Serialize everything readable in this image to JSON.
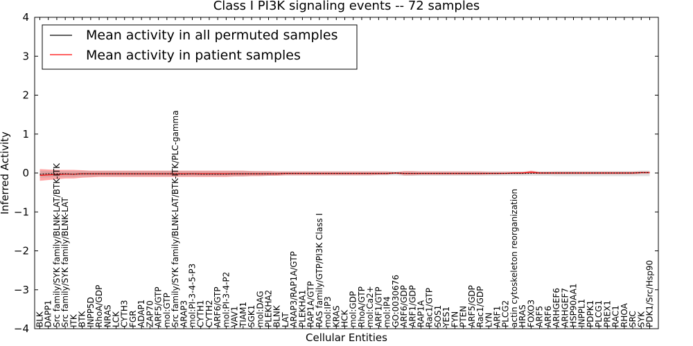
{
  "chart_data": {
    "type": "line",
    "title": "Class I PI3K signaling events -- 72 samples",
    "xlabel": "Cellular Entities",
    "ylabel": "Inferred Activity",
    "ylim": [
      -4,
      4
    ],
    "yticks": [
      -4,
      -3,
      -2,
      -1,
      0,
      1,
      2,
      3,
      4
    ],
    "ytick_labels": [
      "−4",
      "−3",
      "−2",
      "−1",
      "0",
      "1",
      "2",
      "3",
      "4"
    ],
    "grid": false,
    "legend": {
      "placement": "top-left",
      "entries": [
        {
          "label": "Mean activity in all permuted samples",
          "color": "#000000"
        },
        {
          "label": "Mean activity in patient samples",
          "color": "#ff0000"
        }
      ]
    },
    "categories": [
      "BLK",
      "DAPP1",
      "Src family/SYK family/BLNK-LAT/BTK-ITK",
      "Src family/SYK family/BLNK-LAT",
      "ITK",
      "BTK",
      "INPP5D",
      "RhoA/GDP",
      "NRAS",
      "LCK",
      "CYTH3",
      "FGR",
      "ADAP1",
      "ZAP70",
      "ARF5/GTP",
      "mol:GTP",
      "Src family/SYK family/BLNK-LAT/BTK-ITK/PLC-gamma",
      "ARAP3",
      "mol:PI-3-4-5-P3",
      "CYTH1",
      "CYTH2",
      "ARF6/GTP",
      "mol:PI-3-4-P2",
      "VAV1",
      "TIAM1",
      "SGK1",
      "mol:DAG",
      "PLEKHA2",
      "BLNK",
      "LAT",
      "ARAP3/RAP1A/GTP",
      "PLEKHA1",
      "RAP1A/GTP",
      "RAS family/GTP/PI3K Class I",
      "mol:IP3",
      "KRAS",
      "HCK",
      "mol:GDP",
      "RhoA/GTP",
      "mol:Ca2+",
      "ARF1/GTP",
      "mol:IP4",
      "GO:0030676",
      "ARF6/GDP",
      "ARF1/GDP",
      "RAP1A",
      "Rac1/GTP",
      "SOS1",
      "YES1",
      "FYN",
      "PTEN",
      "ARF5/GDP",
      "Rac1/GDP",
      "LYN",
      "ARF1",
      "PLCG2",
      "actin cytoskeleton reorganization",
      "HRAS",
      "FOXO3",
      "ARF5",
      "ARF6",
      "ARHGEF6",
      "ARHGEF7",
      "HSP90AA1",
      "INPPL1",
      "PDPK1",
      "PLCG1",
      "PREX1",
      "RAC1",
      "RHOA",
      "SRC",
      "SYK",
      "PDK1/Src/Hsp90"
    ],
    "series": [
      {
        "name": "Mean activity in all permuted samples",
        "color": "#000000",
        "values": [
          -0.03,
          -0.02,
          -0.02,
          -0.02,
          -0.03,
          -0.02,
          -0.02,
          -0.02,
          -0.02,
          -0.02,
          -0.02,
          -0.02,
          -0.02,
          -0.02,
          -0.02,
          -0.02,
          -0.02,
          -0.03,
          -0.02,
          -0.03,
          -0.03,
          -0.03,
          -0.03,
          -0.02,
          -0.02,
          -0.02,
          -0.02,
          -0.02,
          -0.02,
          -0.01,
          -0.01,
          -0.01,
          -0.01,
          -0.01,
          -0.01,
          -0.01,
          -0.01,
          -0.01,
          -0.01,
          -0.01,
          -0.01,
          -0.01,
          0.0,
          -0.01,
          -0.01,
          -0.01,
          -0.01,
          -0.01,
          -0.01,
          -0.01,
          -0.01,
          -0.01,
          -0.01,
          -0.01,
          -0.01,
          -0.01,
          -0.01,
          -0.01,
          -0.01,
          0.0,
          0.0,
          0.0,
          0.0,
          0.0,
          0.0,
          0.0,
          0.0,
          0.0,
          0.0,
          0.0,
          0.0,
          0.01,
          0.01
        ]
      },
      {
        "name": "Mean activity in patient samples",
        "color": "#ff0000",
        "values": [
          -0.06,
          -0.05,
          -0.04,
          -0.03,
          -0.03,
          -0.02,
          -0.02,
          -0.02,
          -0.02,
          -0.02,
          -0.02,
          -0.02,
          -0.02,
          -0.02,
          -0.02,
          -0.02,
          -0.02,
          -0.02,
          -0.02,
          -0.02,
          -0.02,
          -0.02,
          -0.02,
          -0.02,
          -0.02,
          -0.02,
          -0.02,
          -0.02,
          -0.02,
          -0.01,
          -0.01,
          -0.01,
          -0.01,
          -0.01,
          -0.01,
          -0.01,
          -0.01,
          -0.01,
          -0.01,
          -0.01,
          -0.01,
          -0.01,
          0.0,
          -0.01,
          -0.01,
          -0.01,
          -0.01,
          -0.01,
          -0.01,
          -0.01,
          -0.01,
          -0.01,
          -0.01,
          -0.01,
          -0.01,
          -0.01,
          0.0,
          0.0,
          0.02,
          0.0,
          0.0,
          0.0,
          0.0,
          0.0,
          0.0,
          0.0,
          0.0,
          0.0,
          0.0,
          0.0,
          0.0,
          0.01,
          0.01
        ]
      }
    ],
    "bands": [
      {
        "series": "Mean activity in patient samples",
        "color": "#ff0000",
        "lower": [
          -0.2,
          -0.18,
          -0.16,
          -0.14,
          -0.14,
          -0.12,
          -0.11,
          -0.1,
          -0.1,
          -0.1,
          -0.1,
          -0.1,
          -0.1,
          -0.1,
          -0.1,
          -0.1,
          -0.1,
          -0.1,
          -0.1,
          -0.1,
          -0.1,
          -0.1,
          -0.1,
          -0.09,
          -0.09,
          -0.08,
          -0.08,
          -0.07,
          -0.07,
          -0.06,
          -0.06,
          -0.06,
          -0.06,
          -0.06,
          -0.06,
          -0.06,
          -0.06,
          -0.06,
          -0.06,
          -0.06,
          -0.05,
          -0.05,
          -0.02,
          -0.06,
          -0.06,
          -0.05,
          -0.05,
          -0.05,
          -0.05,
          -0.05,
          -0.05,
          -0.05,
          -0.05,
          -0.04,
          -0.04,
          -0.03,
          -0.03,
          -0.03,
          -0.02,
          -0.03,
          -0.03,
          -0.03,
          -0.03,
          -0.03,
          -0.03,
          -0.03,
          -0.03,
          -0.03,
          -0.03,
          -0.03,
          -0.03,
          -0.02,
          -0.02
        ],
        "upper": [
          0.1,
          0.09,
          0.08,
          0.08,
          0.08,
          0.07,
          0.06,
          0.06,
          0.06,
          0.06,
          0.06,
          0.06,
          0.06,
          0.06,
          0.06,
          0.06,
          0.06,
          0.06,
          0.06,
          0.06,
          0.06,
          0.06,
          0.06,
          0.06,
          0.06,
          0.05,
          0.05,
          0.05,
          0.04,
          0.04,
          0.04,
          0.04,
          0.04,
          0.04,
          0.04,
          0.04,
          0.04,
          0.04,
          0.04,
          0.04,
          0.04,
          0.04,
          0.02,
          0.05,
          0.05,
          0.04,
          0.04,
          0.04,
          0.04,
          0.04,
          0.04,
          0.04,
          0.04,
          0.03,
          0.03,
          0.03,
          0.03,
          0.03,
          0.06,
          0.03,
          0.03,
          0.03,
          0.03,
          0.03,
          0.03,
          0.03,
          0.03,
          0.03,
          0.03,
          0.03,
          0.03,
          0.04,
          0.04
        ]
      },
      {
        "series": "Mean activity in all permuted samples",
        "color": "#999999",
        "lower": [
          -0.12,
          -0.11,
          -0.1,
          -0.1,
          -0.1,
          -0.09,
          -0.09,
          -0.08,
          -0.08,
          -0.08,
          -0.08,
          -0.08,
          -0.08,
          -0.08,
          -0.08,
          -0.08,
          -0.08,
          -0.08,
          -0.08,
          -0.08,
          -0.08,
          -0.08,
          -0.08,
          -0.08,
          -0.08,
          -0.07,
          -0.07,
          -0.07,
          -0.06,
          -0.06,
          -0.06,
          -0.06,
          -0.06,
          -0.06,
          -0.06,
          -0.06,
          -0.06,
          -0.06,
          -0.06,
          -0.06,
          -0.06,
          -0.06,
          -0.06,
          -0.07,
          -0.07,
          -0.07,
          -0.07,
          -0.07,
          -0.07,
          -0.07,
          -0.07,
          -0.07,
          -0.07,
          -0.07,
          -0.07,
          -0.07,
          -0.07,
          -0.07,
          -0.07,
          -0.07,
          -0.07,
          -0.08,
          -0.08,
          -0.08,
          -0.08,
          -0.08,
          -0.08,
          -0.08,
          -0.08,
          -0.08,
          -0.08,
          -0.08,
          -0.08
        ],
        "upper": [
          0.06,
          0.05,
          0.05,
          0.05,
          0.05,
          0.05,
          0.05,
          0.05,
          0.05,
          0.05,
          0.05,
          0.05,
          0.05,
          0.05,
          0.05,
          0.05,
          0.05,
          0.05,
          0.05,
          0.05,
          0.05,
          0.05,
          0.05,
          0.05,
          0.05,
          0.05,
          0.04,
          0.04,
          0.04,
          0.04,
          0.04,
          0.04,
          0.04,
          0.04,
          0.04,
          0.04,
          0.04,
          0.04,
          0.04,
          0.04,
          0.04,
          0.04,
          0.04,
          0.04,
          0.04,
          0.04,
          0.04,
          0.04,
          0.04,
          0.04,
          0.04,
          0.04,
          0.04,
          0.04,
          0.04,
          0.04,
          0.04,
          0.04,
          0.04,
          0.04,
          0.04,
          0.05,
          0.05,
          0.05,
          0.05,
          0.05,
          0.05,
          0.05,
          0.05,
          0.05,
          0.05,
          0.06,
          0.06
        ]
      }
    ]
  }
}
